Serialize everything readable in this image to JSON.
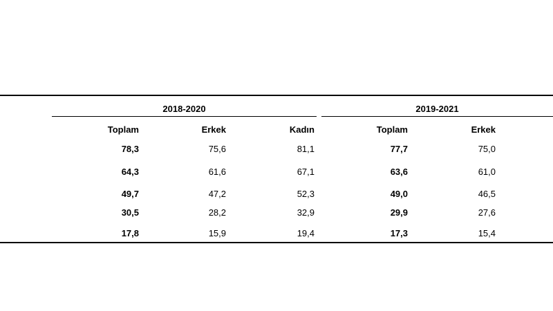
{
  "table": {
    "groups": [
      {
        "label": "2018-2020",
        "columns": [
          "Toplam",
          "Erkek",
          "Kadın"
        ],
        "rows": [
          [
            "78,3",
            "75,6",
            "81,1"
          ],
          [
            "64,3",
            "61,6",
            "67,1"
          ],
          [
            "49,7",
            "47,2",
            "52,3"
          ],
          [
            "30,5",
            "28,2",
            "32,9"
          ],
          [
            "17,8",
            "15,9",
            "19,4"
          ]
        ]
      },
      {
        "label": "2019-2021",
        "columns": [
          "Toplam",
          "Erkek"
        ],
        "rows": [
          [
            "77,7",
            "75,0"
          ],
          [
            "63,6",
            "61,0"
          ],
          [
            "49,0",
            "46,5"
          ],
          [
            "29,9",
            "27,6"
          ],
          [
            "17,3",
            "15,4"
          ]
        ]
      }
    ]
  }
}
